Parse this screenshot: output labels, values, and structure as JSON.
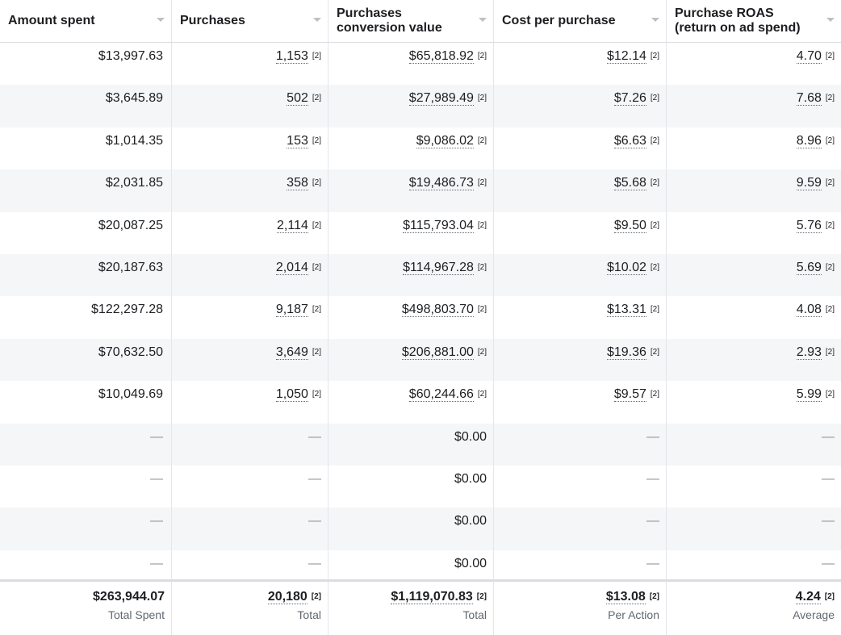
{
  "columns": [
    {
      "label": "Amount spent"
    },
    {
      "label": "Purchases"
    },
    {
      "label": "Purchases conversion value"
    },
    {
      "label": "Cost per purchase"
    },
    {
      "label": "Purchase ROAS (return on ad spend)"
    }
  ],
  "footnote_marker": "[2]",
  "dash": "—",
  "rows": [
    {
      "spent": "$13,997.63",
      "purchases": "1,153",
      "value": "$65,818.92",
      "cpp": "$12.14",
      "roas": "4.70"
    },
    {
      "spent": "$3,645.89",
      "purchases": "502",
      "value": "$27,989.49",
      "cpp": "$7.26",
      "roas": "7.68"
    },
    {
      "spent": "$1,014.35",
      "purchases": "153",
      "value": "$9,086.02",
      "cpp": "$6.63",
      "roas": "8.96"
    },
    {
      "spent": "$2,031.85",
      "purchases": "358",
      "value": "$19,486.73",
      "cpp": "$5.68",
      "roas": "9.59"
    },
    {
      "spent": "$20,087.25",
      "purchases": "2,114",
      "value": "$115,793.04",
      "cpp": "$9.50",
      "roas": "5.76"
    },
    {
      "spent": "$20,187.63",
      "purchases": "2,014",
      "value": "$114,967.28",
      "cpp": "$10.02",
      "roas": "5.69"
    },
    {
      "spent": "$122,297.28",
      "purchases": "9,187",
      "value": "$498,803.70",
      "cpp": "$13.31",
      "roas": "4.08"
    },
    {
      "spent": "$70,632.50",
      "purchases": "3,649",
      "value": "$206,881.00",
      "cpp": "$19.36",
      "roas": "2.93"
    },
    {
      "spent": "$10,049.69",
      "purchases": "1,050",
      "value": "$60,244.66",
      "cpp": "$9.57",
      "roas": "5.99"
    },
    {
      "spent": "—",
      "purchases": "—",
      "value": "$0.00",
      "cpp": "—",
      "roas": "—"
    },
    {
      "spent": "—",
      "purchases": "—",
      "value": "$0.00",
      "cpp": "—",
      "roas": "—"
    },
    {
      "spent": "—",
      "purchases": "—",
      "value": "$0.00",
      "cpp": "—",
      "roas": "—"
    },
    {
      "spent": "—",
      "purchases": "—",
      "value": "$0.00",
      "cpp": "—",
      "roas": "—"
    }
  ],
  "totals": {
    "spent": {
      "value": "$263,944.07",
      "label": "Total Spent"
    },
    "purchases": {
      "value": "20,180",
      "label": "Total"
    },
    "value": {
      "value": "$1,119,070.83",
      "label": "Total"
    },
    "cpp": {
      "value": "$13.08",
      "label": "Per Action"
    },
    "roas": {
      "value": "4.24",
      "label": "Average"
    }
  }
}
